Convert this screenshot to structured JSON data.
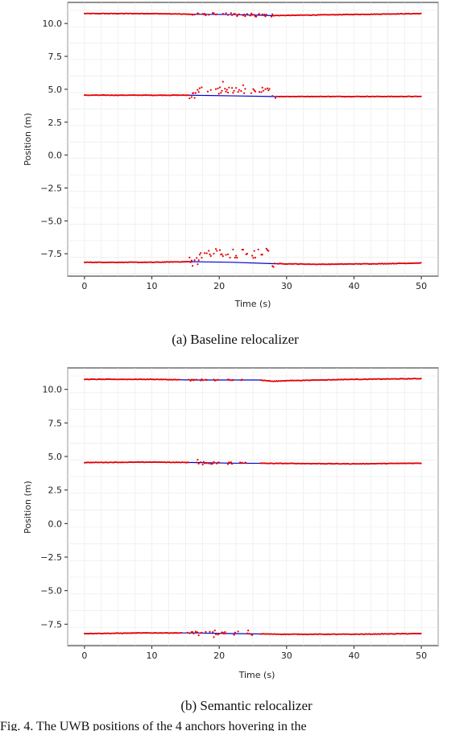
{
  "chart_data": [
    {
      "type": "scatter",
      "caption": "(a) Baseline relocalizer",
      "xlabel": "Time (s)",
      "ylabel": "Position (m)",
      "xlim": [
        -2.5,
        52.5
      ],
      "ylim": [
        -9.2,
        11.6
      ],
      "xticks": [
        0,
        10,
        20,
        30,
        40,
        50
      ],
      "xtick_labels": [
        "0",
        "10",
        "20",
        "30",
        "40",
        "50"
      ],
      "yticks": [
        10.0,
        7.5,
        5.0,
        2.5,
        0.0,
        -2.5,
        -5.0,
        -7.5
      ],
      "ytick_labels": [
        "10.0",
        "7.5",
        "5.0",
        "2.5",
        "0.0",
        "−2.5",
        "−5.0",
        "−7.5"
      ],
      "grid": true,
      "series": [
        {
          "color": "#0000cc",
          "style": "line",
          "lines": [
            {
              "x": [
                0,
                10,
                16,
                22,
                28,
                35,
                45,
                50
              ],
              "y": [
                10.75,
                10.75,
                10.7,
                10.68,
                10.6,
                10.65,
                10.72,
                10.75
              ]
            },
            {
              "x": [
                0,
                10,
                15.5,
                22,
                28,
                35,
                45,
                50
              ],
              "y": [
                4.55,
                4.55,
                4.55,
                4.5,
                4.45,
                4.45,
                4.45,
                4.45
              ]
            },
            {
              "x": [
                0,
                10,
                15.5,
                22,
                28,
                35,
                45,
                50
              ],
              "y": [
                -8.15,
                -8.15,
                -8.1,
                -8.15,
                -8.25,
                -8.3,
                -8.25,
                -8.2
              ]
            }
          ]
        },
        {
          "color": "#e60000",
          "style": "dots",
          "tracks": [
            {
              "x0": 0,
              "x1": 50,
              "step": 0.15,
              "base": [
                [
                  0,
                  10.75
                ],
                [
                  10,
                  10.75
                ],
                [
                  16,
                  10.7
                ],
                [
                  22,
                  10.68
                ],
                [
                  28,
                  10.6
                ],
                [
                  35,
                  10.65
                ],
                [
                  45,
                  10.72
                ],
                [
                  50,
                  10.75
                ]
              ],
              "noisy": [
                16,
                28
              ],
              "amp": 0.12
            },
            {
              "x0": 0,
              "x1": 50,
              "step": 0.15,
              "base": [
                [
                  0,
                  4.55
                ],
                [
                  10,
                  4.55
                ],
                [
                  15.5,
                  4.55
                ],
                [
                  22,
                  4.5
                ],
                [
                  28,
                  4.45
                ],
                [
                  35,
                  4.45
                ],
                [
                  45,
                  4.45
                ],
                [
                  50,
                  4.45
                ]
              ],
              "jump": [
                16.5,
                27.5,
                4.9
              ],
              "noisy": [
                15.5,
                28.5
              ],
              "amp": 0.25
            },
            {
              "x0": 0,
              "x1": 50,
              "step": 0.15,
              "base": [
                [
                  0,
                  -8.15
                ],
                [
                  10,
                  -8.15
                ],
                [
                  15.5,
                  -8.1
                ],
                [
                  22,
                  -8.15
                ],
                [
                  28,
                  -8.25
                ],
                [
                  35,
                  -8.3
                ],
                [
                  45,
                  -8.25
                ],
                [
                  50,
                  -8.2
                ]
              ],
              "jump": [
                17,
                27.5,
                -7.5
              ],
              "noisy": [
                15.5,
                28.5
              ],
              "amp": 0.35
            }
          ]
        }
      ]
    },
    {
      "type": "scatter",
      "caption": "(b) Semantic relocalizer",
      "xlabel": "Time (s)",
      "ylabel": "Position (m)",
      "xlim": [
        -2.5,
        52.5
      ],
      "ylim": [
        -9.1,
        11.6
      ],
      "xticks": [
        0,
        10,
        20,
        30,
        40,
        50
      ],
      "xtick_labels": [
        "0",
        "10",
        "20",
        "30",
        "40",
        "50"
      ],
      "yticks": [
        10.0,
        7.5,
        5.0,
        2.5,
        0.0,
        -2.5,
        -5.0,
        -7.5
      ],
      "ytick_labels": [
        "10.0",
        "7.5",
        "5.0",
        "2.5",
        "0.0",
        "−2.5",
        "−5.0",
        "−7.5"
      ],
      "grid": true,
      "series": [
        {
          "color": "#0000cc",
          "style": "line",
          "lines": [
            {
              "x": [
                0,
                10,
                16,
                22,
                26,
                28,
                30,
                40,
                50
              ],
              "y": [
                10.75,
                10.75,
                10.7,
                10.7,
                10.7,
                10.6,
                10.65,
                10.75,
                10.8
              ]
            },
            {
              "x": [
                0,
                10,
                16,
                22,
                30,
                40,
                50
              ],
              "y": [
                4.55,
                4.58,
                4.55,
                4.5,
                4.48,
                4.45,
                4.5
              ]
            },
            {
              "x": [
                0,
                10,
                16,
                22,
                30,
                40,
                50
              ],
              "y": [
                -8.2,
                -8.15,
                -8.15,
                -8.2,
                -8.25,
                -8.25,
                -8.2
              ]
            }
          ]
        },
        {
          "color": "#e60000",
          "style": "dots",
          "tracks": [
            {
              "x0": 0,
              "x1": 50,
              "step": 0.15,
              "base": [
                [
                  0,
                  10.75
                ],
                [
                  10,
                  10.75
                ],
                [
                  16,
                  10.7
                ],
                [
                  22,
                  10.7
                ],
                [
                  26,
                  10.7
                ],
                [
                  28,
                  10.6
                ],
                [
                  30,
                  10.65
                ],
                [
                  40,
                  10.75
                ],
                [
                  50,
                  10.8
                ]
              ],
              "gaps": [
                [
                  14.2,
                  15.4
                ],
                [
                  20,
                  21.2
                ],
                [
                  22.3,
                  23.2
                ],
                [
                  23.8,
                  25.6
                ]
              ],
              "noisy": [
                15,
                26
              ],
              "amp": 0.05
            },
            {
              "x0": 0,
              "x1": 50,
              "step": 0.15,
              "base": [
                [
                  0,
                  4.55
                ],
                [
                  10,
                  4.58
                ],
                [
                  16,
                  4.55
                ],
                [
                  22,
                  4.5
                ],
                [
                  30,
                  4.48
                ],
                [
                  40,
                  4.45
                ],
                [
                  50,
                  4.5
                ]
              ],
              "gaps": [
                [
                  15.5,
                  16.2
                ],
                [
                  20,
                  21
                ],
                [
                  22,
                  23
                ],
                [
                  24,
                  25.5
                ]
              ],
              "noisy": [
                16,
                26
              ],
              "amp": 0.08
            },
            {
              "x0": 0,
              "x1": 50,
              "step": 0.15,
              "base": [
                [
                  0,
                  -8.2
                ],
                [
                  10,
                  -8.15
                ],
                [
                  16,
                  -8.15
                ],
                [
                  22,
                  -8.2
                ],
                [
                  30,
                  -8.25
                ],
                [
                  40,
                  -8.25
                ],
                [
                  50,
                  -8.2
                ]
              ],
              "gaps": [
                [
                  14.5,
                  15.2
                ],
                [
                  21,
                  22
                ],
                [
                  23,
                  24
                ],
                [
                  25,
                  26
                ]
              ],
              "noisy": [
                15,
                26
              ],
              "amp": 0.12
            }
          ]
        }
      ]
    }
  ],
  "footer_text": "Fig. 4. The UWB positions of the 4 anchors hovering in the"
}
